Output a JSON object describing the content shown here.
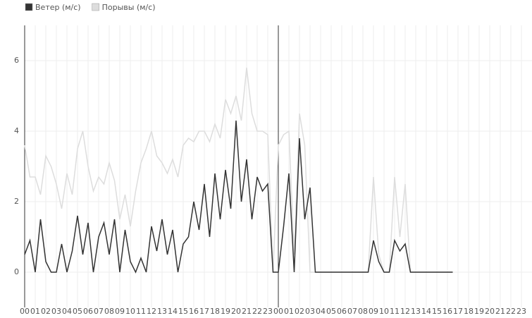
{
  "chart_data": {
    "type": "line",
    "x": [
      0,
      0.5,
      1,
      1.5,
      2,
      2.5,
      3,
      3.5,
      4,
      4.5,
      5,
      5.5,
      6,
      6.5,
      7,
      7.5,
      8,
      8.5,
      9,
      9.5,
      10,
      10.5,
      11,
      11.5,
      12,
      12.5,
      13,
      13.5,
      14,
      14.5,
      15,
      15.5,
      16,
      16.5,
      17,
      17.5,
      18,
      18.5,
      19,
      19.5,
      20,
      20.5,
      21,
      21.5,
      22,
      22.5,
      23,
      23.5,
      24,
      24.5,
      25,
      25.5,
      26,
      26.5,
      27,
      27.5,
      28,
      28.5,
      29,
      29.5,
      30,
      30.5,
      31,
      31.5,
      32,
      32.5,
      33,
      33.5,
      34,
      34.5,
      35,
      35.5,
      36,
      36.5,
      37,
      37.5,
      38,
      38.5,
      39,
      39.5,
      40,
      40.5
    ],
    "series": [
      {
        "name": "Порывы (м/с)",
        "color": "#dddddd",
        "values": [
          3.6,
          2.7,
          2.7,
          2.2,
          3.3,
          3.0,
          2.5,
          1.8,
          2.8,
          2.2,
          3.5,
          4.0,
          3.0,
          2.3,
          2.7,
          2.5,
          3.1,
          2.6,
          1.5,
          2.2,
          1.3,
          2.3,
          3.1,
          3.5,
          4.0,
          3.3,
          3.1,
          2.8,
          3.2,
          2.7,
          3.6,
          3.8,
          3.7,
          4.0,
          4.0,
          3.7,
          4.2,
          3.8,
          4.9,
          4.5,
          5.0,
          4.3,
          5.8,
          4.5,
          4.0,
          4.0,
          3.9,
          0,
          3.6,
          3.9,
          4.0,
          0.5,
          4.5,
          3.6,
          0,
          0,
          0,
          0,
          0,
          0,
          0,
          0,
          0,
          0,
          0,
          0,
          2.7,
          0.5,
          0,
          0,
          2.7,
          1.0,
          2.5,
          0,
          0,
          0,
          0,
          0,
          0,
          0,
          0,
          0
        ]
      },
      {
        "name": "Ветер (м/с)",
        "color": "#333333",
        "values": [
          0.5,
          0.9,
          0,
          1.5,
          0.3,
          0,
          0,
          0.8,
          0,
          0.6,
          1.6,
          0.5,
          1.4,
          0,
          1.0,
          1.4,
          0.5,
          1.5,
          0,
          1.2,
          0.3,
          0,
          0.4,
          0,
          1.3,
          0.6,
          1.5,
          0.5,
          1.2,
          0,
          0.8,
          1.0,
          2.0,
          1.2,
          2.5,
          1.0,
          2.8,
          1.5,
          2.9,
          1.8,
          4.3,
          2.0,
          3.2,
          1.5,
          2.7,
          2.3,
          2.5,
          0,
          0,
          1.3,
          2.8,
          0,
          3.8,
          1.5,
          2.4,
          0,
          0,
          0,
          0,
          0,
          0,
          0,
          0,
          0,
          0,
          0,
          0.9,
          0.3,
          0,
          0,
          0.9,
          0.6,
          0.8,
          0,
          0,
          0,
          0,
          0,
          0,
          0,
          0,
          0
        ]
      }
    ],
    "xlim": [
      0,
      48
    ],
    "xticks": [
      {
        "value": 0,
        "label": "00"
      },
      {
        "value": 1,
        "label": "01"
      },
      {
        "value": 2,
        "label": "02"
      },
      {
        "value": 3,
        "label": "03"
      },
      {
        "value": 4,
        "label": "04"
      },
      {
        "value": 5,
        "label": "05"
      },
      {
        "value": 6,
        "label": "06"
      },
      {
        "value": 7,
        "label": "07"
      },
      {
        "value": 8,
        "label": "08"
      },
      {
        "value": 9,
        "label": "09"
      },
      {
        "value": 10,
        "label": "10"
      },
      {
        "value": 11,
        "label": "11"
      },
      {
        "value": 12,
        "label": "12"
      },
      {
        "value": 13,
        "label": "13"
      },
      {
        "value": 14,
        "label": "14"
      },
      {
        "value": 15,
        "label": "15"
      },
      {
        "value": 16,
        "label": "16"
      },
      {
        "value": 17,
        "label": "17"
      },
      {
        "value": 18,
        "label": "18"
      },
      {
        "value": 19,
        "label": "19"
      },
      {
        "value": 20,
        "label": "20"
      },
      {
        "value": 21,
        "label": "21"
      },
      {
        "value": 22,
        "label": "22"
      },
      {
        "value": 23,
        "label": "23"
      },
      {
        "value": 24,
        "label": "00"
      },
      {
        "value": 25,
        "label": "01"
      },
      {
        "value": 26,
        "label": "02"
      },
      {
        "value": 27,
        "label": "03"
      },
      {
        "value": 28,
        "label": "04"
      },
      {
        "value": 29,
        "label": "05"
      },
      {
        "value": 30,
        "label": "06"
      },
      {
        "value": 31,
        "label": "07"
      },
      {
        "value": 32,
        "label": "08"
      },
      {
        "value": 33,
        "label": "09"
      },
      {
        "value": 34,
        "label": "10"
      },
      {
        "value": 35,
        "label": "11"
      },
      {
        "value": 36,
        "label": "12"
      },
      {
        "value": 37,
        "label": "13"
      },
      {
        "value": 38,
        "label": "14"
      },
      {
        "value": 39,
        "label": "15"
      },
      {
        "value": 40,
        "label": "16"
      },
      {
        "value": 41,
        "label": "17"
      },
      {
        "value": 42,
        "label": "18"
      },
      {
        "value": 43,
        "label": "19"
      },
      {
        "value": 44,
        "label": "20"
      },
      {
        "value": 45,
        "label": "21"
      },
      {
        "value": 46,
        "label": "22"
      },
      {
        "value": 47,
        "label": "23"
      }
    ],
    "ylim": [
      -1,
      7
    ],
    "yticks": [
      0,
      2,
      4,
      6
    ],
    "grid": true
  }
}
